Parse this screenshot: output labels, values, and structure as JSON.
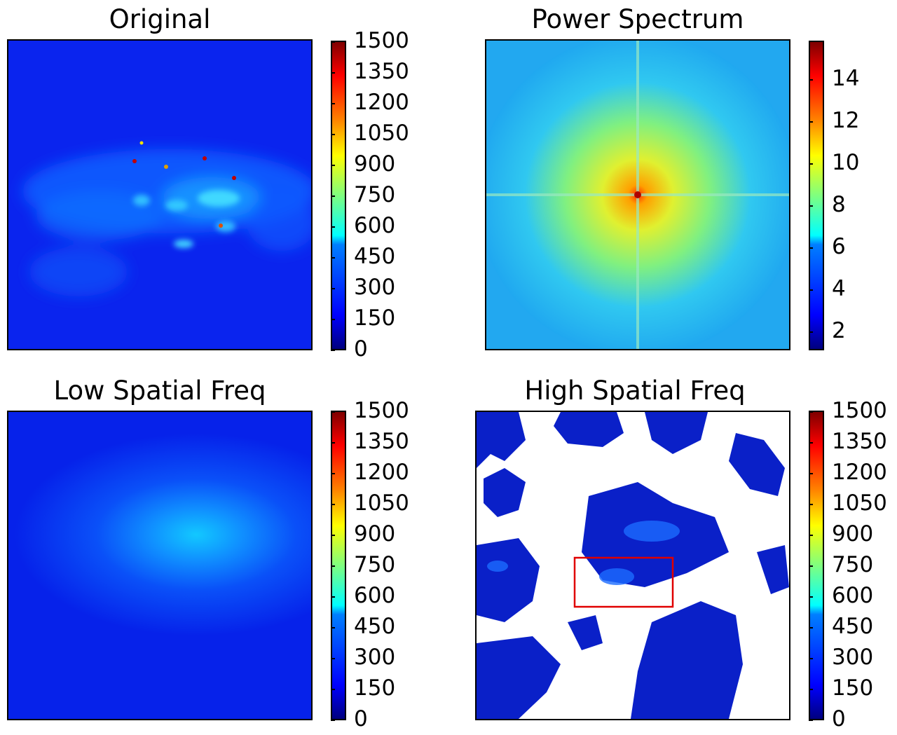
{
  "chart_data": [
    {
      "type": "heatmap",
      "title": "Original",
      "colormap": "jet",
      "colorbar": {
        "min": 0,
        "max": 1500,
        "ticks": [
          "0",
          "150",
          "300",
          "450",
          "600",
          "750",
          "900",
          "1050",
          "1200",
          "1350",
          "1500"
        ]
      },
      "description_colors": {
        "background": "#0a2cf0",
        "mid": "#1a8cff",
        "peak": "#c00000"
      }
    },
    {
      "type": "heatmap",
      "title": "Power Spectrum",
      "colormap": "jet",
      "colorbar": {
        "min": 1.2,
        "max": 15.8,
        "ticks": [
          "2",
          "4",
          "6",
          "8",
          "10",
          "12",
          "14"
        ]
      }
    },
    {
      "type": "heatmap",
      "title": "Low Spatial Freq",
      "colormap": "jet",
      "colorbar": {
        "min": 0,
        "max": 1500,
        "ticks": [
          "0",
          "150",
          "300",
          "450",
          "600",
          "750",
          "900",
          "1050",
          "1200",
          "1350",
          "1500"
        ]
      }
    },
    {
      "type": "heatmap",
      "title": "High Spatial Freq",
      "colormap": "jet",
      "colorbar": {
        "min": 0,
        "max": 1500,
        "ticks": [
          "0",
          "150",
          "300",
          "450",
          "600",
          "750",
          "900",
          "1050",
          "1200",
          "1350",
          "1500"
        ]
      },
      "highlight_box_color": "#e00000"
    }
  ]
}
